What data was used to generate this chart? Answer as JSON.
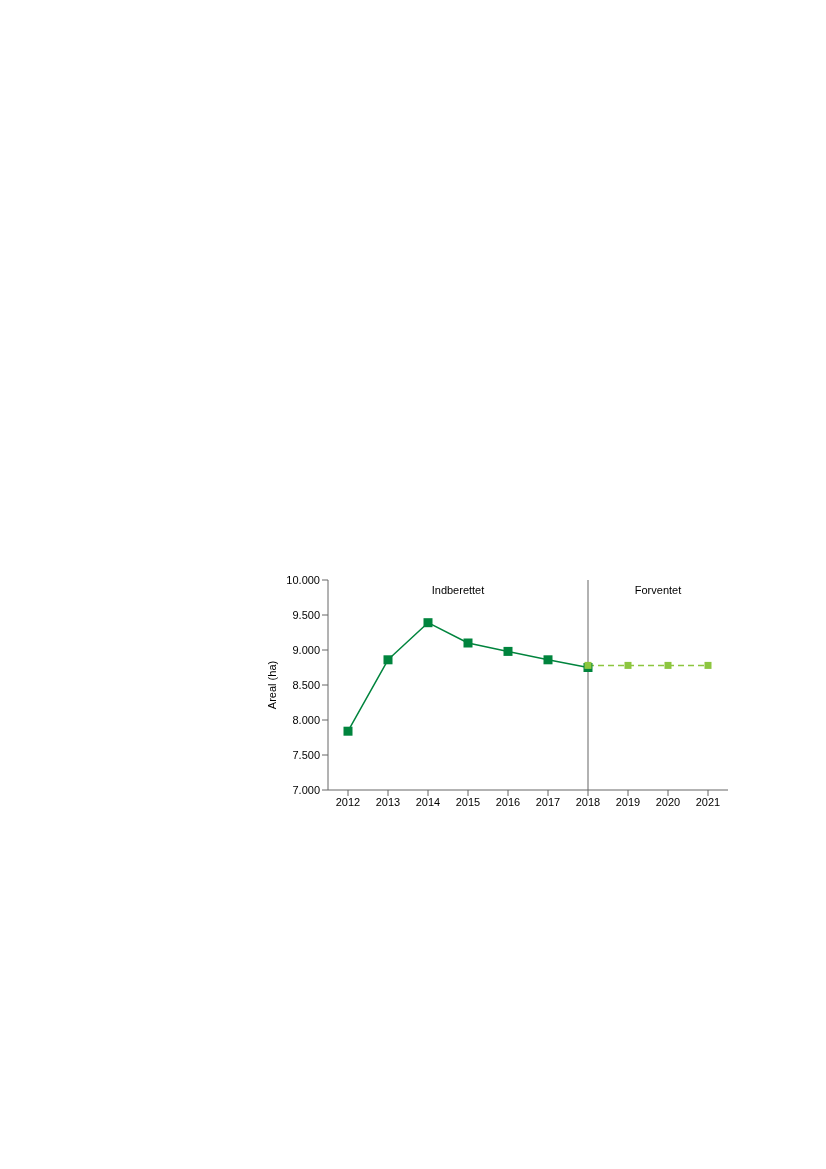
{
  "chart_data": {
    "type": "line",
    "ylabel": "Areal (ha)",
    "categories": [
      "2012",
      "2013",
      "2014",
      "2015",
      "2016",
      "2017",
      "2018",
      "2019",
      "2020",
      "2021"
    ],
    "series": [
      {
        "color": "#00843d",
        "line_style": "solid",
        "values": [
          7840,
          8860,
          9390,
          9100,
          8980,
          8860,
          8750,
          null,
          null,
          null
        ]
      },
      {
        "color": "#8dc63f",
        "line_style": "dashed",
        "values": [
          null,
          null,
          null,
          null,
          null,
          null,
          8780,
          8780,
          8780,
          8780
        ]
      }
    ],
    "ylim": [
      7000,
      10000
    ],
    "yticks": [
      {
        "value": 7000,
        "label": "7.000"
      },
      {
        "value": 7500,
        "label": "7.500"
      },
      {
        "value": 8000,
        "label": "8.000"
      },
      {
        "value": 8500,
        "label": "8.500"
      },
      {
        "value": 9000,
        "label": "9.000"
      },
      {
        "value": 9500,
        "label": "9.500"
      },
      {
        "value": 10000,
        "label": "10.000"
      }
    ],
    "ref_lines": [
      {
        "axis": "x",
        "value": "2018",
        "color": "#999999"
      }
    ],
    "annotations": [
      "Indberettet",
      "Forventet"
    ],
    "marker": "square",
    "grid": false,
    "legend": false
  }
}
